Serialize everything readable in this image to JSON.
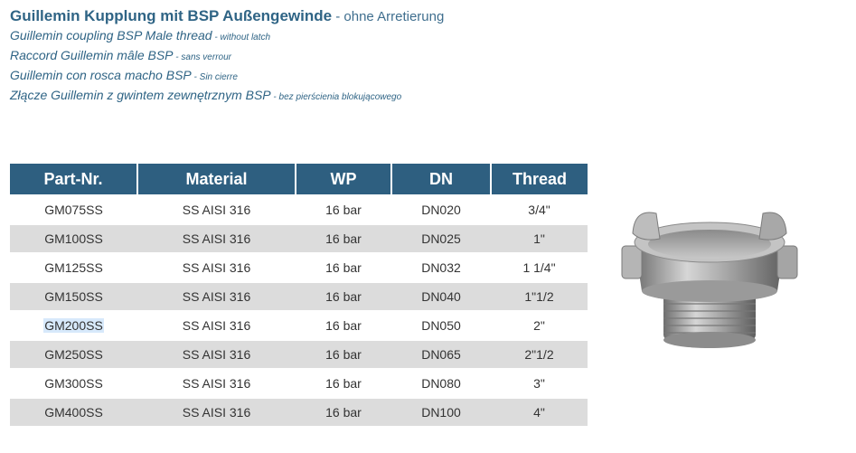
{
  "titles": {
    "de": {
      "main": "Guillemin Kupplung mit BSP Außengewinde",
      "sub": " - ohne Arretierung"
    },
    "en": {
      "main": "Guillemin coupling BSP Male thread",
      "sub": " - without latch"
    },
    "fr": {
      "main": "Raccord Guillemin mâle BSP",
      "sub": " - sans verrour"
    },
    "es": {
      "main": "Guillemin con rosca macho BSP",
      "sub": " - Sin cierre"
    },
    "pl": {
      "main": "Złącze Guillemin z gwintem zewnętrznym BSP",
      "sub": " - bez pierścienia blokującowego"
    }
  },
  "table": {
    "headers": [
      "Part-Nr.",
      "Material",
      "WP",
      "DN",
      "Thread"
    ],
    "rows": [
      {
        "part": "GM075SS",
        "material": "SS AISI 316",
        "wp": "16 bar",
        "dn": "DN020",
        "thread": "3/4\""
      },
      {
        "part": "GM100SS",
        "material": "SS AISI 316",
        "wp": "16 bar",
        "dn": "DN025",
        "thread": "1\""
      },
      {
        "part": "GM125SS",
        "material": "SS AISI 316",
        "wp": "16 bar",
        "dn": "DN032",
        "thread": "1 1/4\""
      },
      {
        "part": "GM150SS",
        "material": "SS AISI 316",
        "wp": "16 bar",
        "dn": "DN040",
        "thread": "1\"1/2"
      },
      {
        "part": "GM200SS",
        "material": "SS AISI 316",
        "wp": "16 bar",
        "dn": "DN050",
        "thread": "2\""
      },
      {
        "part": "GM250SS",
        "material": "SS AISI 316",
        "wp": "16 bar",
        "dn": "DN065",
        "thread": "2\"1/2"
      },
      {
        "part": "GM300SS",
        "material": "SS AISI 316",
        "wp": "16 bar",
        "dn": "DN080",
        "thread": "3\""
      },
      {
        "part": "GM400SS",
        "material": "SS AISI 316",
        "wp": "16 bar",
        "dn": "DN100",
        "thread": "4\""
      }
    ]
  },
  "selection": {
    "highlighted_part": "GM200SS"
  },
  "colors": {
    "header_bg": "#2e5f80",
    "title": "#2f6485",
    "row_alt": "#dcdcdc",
    "highlight": "#d7e9fb"
  },
  "image": {
    "icon": "guillemin-coupling-photo"
  }
}
